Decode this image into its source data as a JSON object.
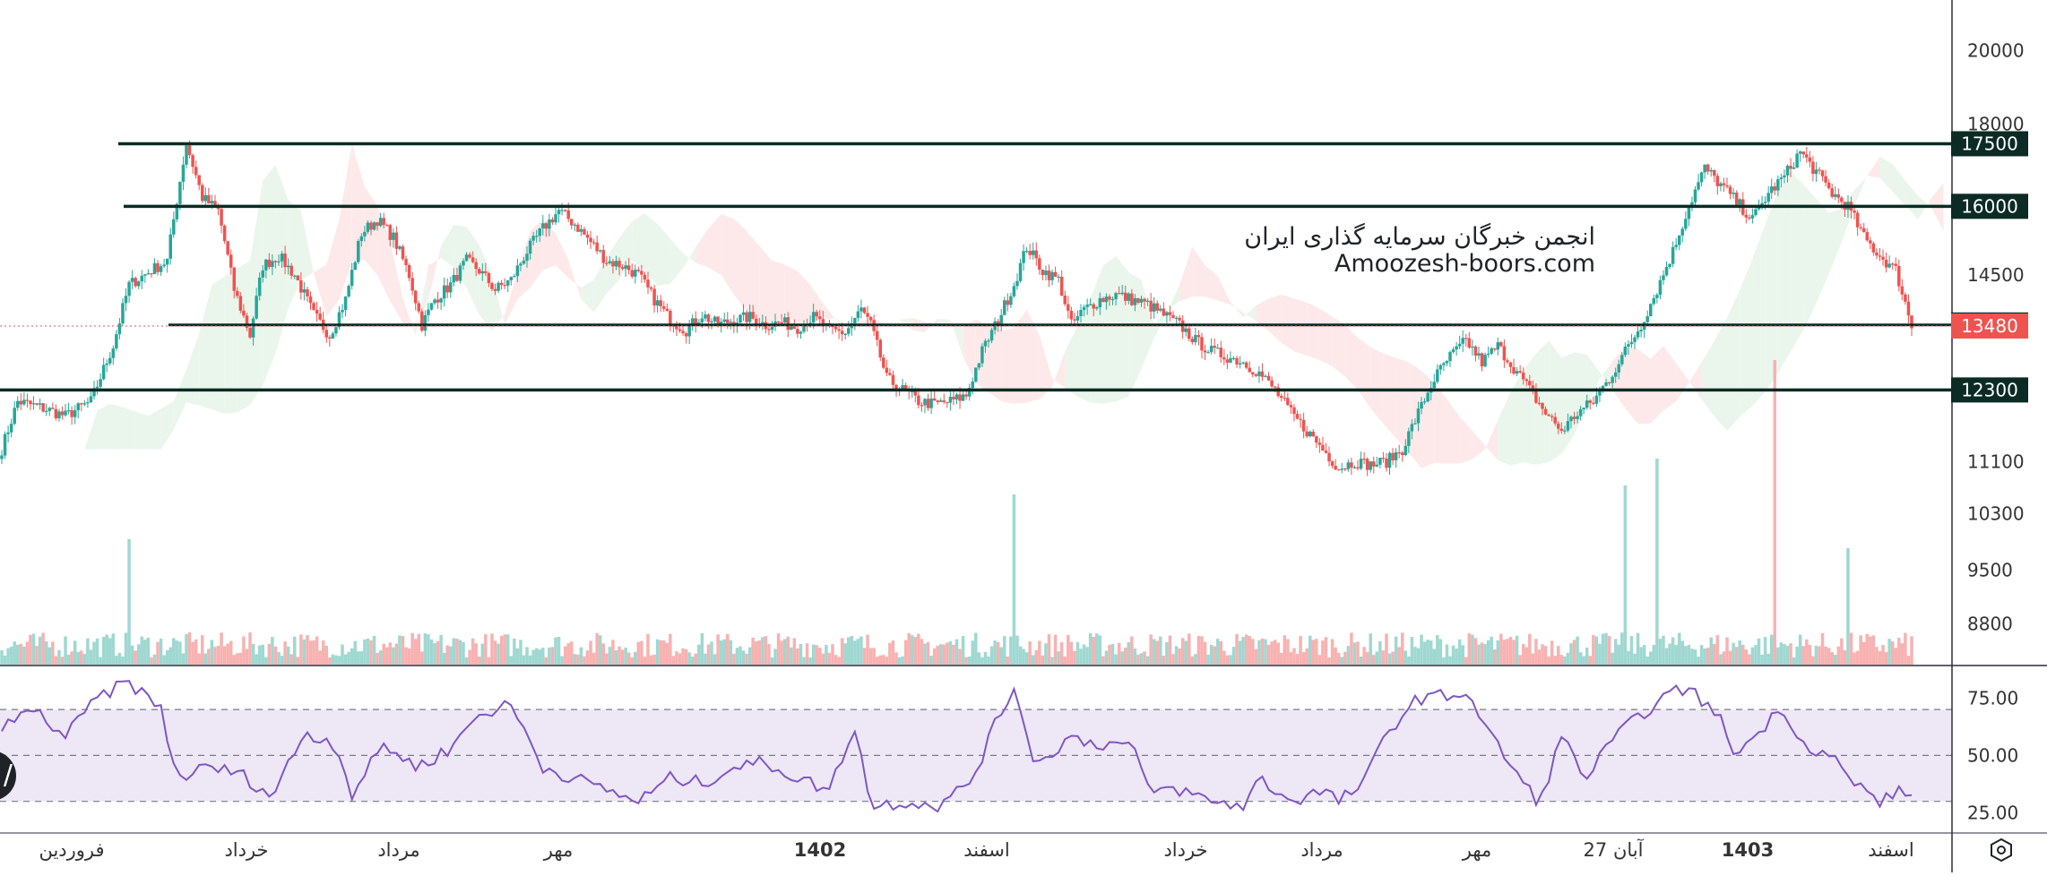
{
  "chart_data": {
    "type": "candlestick",
    "symbol": "",
    "price_axis": {
      "ticks": [
        20000,
        18000,
        14500,
        11100,
        10300,
        9500,
        8800
      ],
      "scale": "log",
      "range": [
        8300,
        21500
      ]
    },
    "horizontal_levels": [
      {
        "value": 17500,
        "label": "17500"
      },
      {
        "value": 16000,
        "label": "16000"
      },
      {
        "value": 13500,
        "label": "13500"
      },
      {
        "value": 12300,
        "label": "12300"
      }
    ],
    "last_price": {
      "value": 13480,
      "label": "13480"
    },
    "time_axis_labels": [
      "فروردین",
      "خرداد",
      "مرداد",
      "مهر",
      "1402",
      "اسفند",
      "خرداد",
      "مرداد",
      "مهر",
      "27 آبان",
      "1403",
      "اسفند"
    ],
    "time_axis_bold": [
      "1402",
      "1403"
    ],
    "close_path": [
      [
        0,
        11300
      ],
      [
        5,
        12100
      ],
      [
        12,
        12000
      ],
      [
        20,
        11850
      ],
      [
        28,
        12100
      ],
      [
        35,
        13100
      ],
      [
        40,
        14300
      ],
      [
        47,
        14600
      ],
      [
        52,
        14800
      ],
      [
        58,
        17500
      ],
      [
        63,
        16200
      ],
      [
        68,
        15900
      ],
      [
        73,
        14200
      ],
      [
        78,
        13300
      ],
      [
        82,
        14700
      ],
      [
        87,
        14900
      ],
      [
        92,
        14500
      ],
      [
        98,
        13700
      ],
      [
        103,
        13300
      ],
      [
        108,
        14000
      ],
      [
        113,
        15400
      ],
      [
        118,
        15700
      ],
      [
        123,
        15300
      ],
      [
        128,
        14500
      ],
      [
        132,
        13500
      ],
      [
        136,
        14000
      ],
      [
        141,
        14300
      ],
      [
        146,
        14800
      ],
      [
        150,
        14600
      ],
      [
        155,
        14200
      ],
      [
        160,
        14400
      ],
      [
        165,
        15000
      ],
      [
        170,
        15500
      ],
      [
        175,
        15900
      ],
      [
        180,
        15600
      ],
      [
        185,
        15200
      ],
      [
        190,
        14800
      ],
      [
        195,
        14700
      ],
      [
        200,
        14500
      ],
      [
        205,
        14000
      ],
      [
        210,
        13600
      ],
      [
        215,
        13400
      ],
      [
        220,
        13700
      ],
      [
        225,
        13500
      ],
      [
        230,
        13600
      ],
      [
        235,
        13650
      ],
      [
        240,
        13500
      ],
      [
        245,
        13550
      ],
      [
        250,
        13450
      ],
      [
        255,
        13650
      ],
      [
        260,
        13400
      ],
      [
        265,
        13350
      ],
      [
        270,
        13800
      ],
      [
        273,
        13500
      ],
      [
        278,
        12500
      ],
      [
        283,
        12300
      ],
      [
        288,
        12100
      ],
      [
        293,
        12050
      ],
      [
        298,
        12100
      ],
      [
        303,
        12200
      ],
      [
        308,
        13000
      ],
      [
        313,
        13600
      ],
      [
        318,
        14300
      ],
      [
        322,
        15100
      ],
      [
        327,
        14600
      ],
      [
        332,
        14400
      ],
      [
        336,
        13500
      ],
      [
        340,
        13800
      ],
      [
        345,
        14000
      ],
      [
        350,
        14100
      ],
      [
        355,
        14000
      ],
      [
        360,
        13900
      ],
      [
        365,
        13700
      ],
      [
        370,
        13500
      ],
      [
        375,
        13200
      ],
      [
        380,
        13000
      ],
      [
        385,
        12900
      ],
      [
        390,
        12800
      ],
      [
        395,
        12600
      ],
      [
        400,
        12300
      ],
      [
        405,
        11900
      ],
      [
        410,
        11600
      ],
      [
        415,
        11300
      ],
      [
        420,
        11000
      ],
      [
        425,
        11100
      ],
      [
        430,
        11050
      ],
      [
        435,
        11100
      ],
      [
        440,
        11300
      ],
      [
        445,
        11900
      ],
      [
        450,
        12500
      ],
      [
        455,
        12900
      ],
      [
        460,
        13200
      ],
      [
        465,
        12800
      ],
      [
        470,
        13100
      ],
      [
        475,
        12700
      ],
      [
        480,
        12300
      ],
      [
        485,
        11900
      ],
      [
        490,
        11600
      ],
      [
        495,
        11900
      ],
      [
        500,
        12100
      ],
      [
        505,
        12500
      ],
      [
        510,
        13000
      ],
      [
        515,
        13500
      ],
      [
        520,
        14200
      ],
      [
        525,
        15000
      ],
      [
        530,
        16000
      ],
      [
        535,
        16900
      ],
      [
        540,
        16500
      ],
      [
        545,
        16100
      ],
      [
        550,
        15700
      ],
      [
        555,
        16300
      ],
      [
        560,
        16700
      ],
      [
        565,
        17300
      ],
      [
        570,
        16800
      ],
      [
        575,
        16300
      ],
      [
        580,
        16000
      ],
      [
        585,
        15300
      ],
      [
        590,
        14900
      ],
      [
        595,
        14600
      ],
      [
        600,
        13480
      ]
    ],
    "volume_spikes": [
      {
        "bar": 40,
        "value": 140
      },
      {
        "bar": 318,
        "value": 190
      },
      {
        "bar": 510,
        "value": 200
      },
      {
        "bar": 520,
        "value": 230
      },
      {
        "bar": 557,
        "value": 340
      },
      {
        "bar": 580,
        "value": 130
      }
    ],
    "rsi": {
      "ticks": [
        75.0,
        50.0,
        25.0
      ],
      "tick_labels": [
        "75.00",
        "50.00",
        "25.00"
      ],
      "band": [
        30,
        70
      ],
      "path": [
        [
          0,
          62
        ],
        [
          10,
          70
        ],
        [
          20,
          58
        ],
        [
          30,
          75
        ],
        [
          40,
          82
        ],
        [
          50,
          70
        ],
        [
          55,
          40
        ],
        [
          65,
          45
        ],
        [
          75,
          42
        ],
        [
          85,
          32
        ],
        [
          95,
          60
        ],
        [
          105,
          55
        ],
        [
          110,
          33
        ],
        [
          120,
          55
        ],
        [
          130,
          45
        ],
        [
          140,
          52
        ],
        [
          150,
          68
        ],
        [
          160,
          72
        ],
        [
          170,
          45
        ],
        [
          180,
          40
        ],
        [
          190,
          35
        ],
        [
          200,
          30
        ],
        [
          210,
          40
        ],
        [
          220,
          38
        ],
        [
          230,
          45
        ],
        [
          240,
          47
        ],
        [
          250,
          40
        ],
        [
          260,
          35
        ],
        [
          268,
          63
        ],
        [
          273,
          28
        ],
        [
          285,
          30
        ],
        [
          295,
          28
        ],
        [
          305,
          40
        ],
        [
          312,
          63
        ],
        [
          318,
          80
        ],
        [
          325,
          45
        ],
        [
          335,
          58
        ],
        [
          345,
          55
        ],
        [
          355,
          55
        ],
        [
          360,
          35
        ],
        [
          370,
          35
        ],
        [
          380,
          30
        ],
        [
          390,
          28
        ],
        [
          395,
          40
        ],
        [
          405,
          30
        ],
        [
          415,
          35
        ],
        [
          420,
          30
        ],
        [
          428,
          38
        ],
        [
          435,
          60
        ],
        [
          445,
          75
        ],
        [
          455,
          76
        ],
        [
          460,
          78
        ],
        [
          468,
          58
        ],
        [
          478,
          38
        ],
        [
          483,
          29
        ],
        [
          490,
          58
        ],
        [
          498,
          40
        ],
        [
          505,
          55
        ],
        [
          515,
          68
        ],
        [
          522,
          75
        ],
        [
          530,
          80
        ],
        [
          540,
          65
        ],
        [
          545,
          50
        ],
        [
          555,
          65
        ],
        [
          560,
          70
        ],
        [
          566,
          55
        ],
        [
          575,
          50
        ],
        [
          580,
          40
        ],
        [
          590,
          30
        ],
        [
          598,
          35
        ],
        [
          602,
          27
        ]
      ]
    }
  },
  "watermark": {
    "line1": "انجمن خبرگان سرمایه گذاری ایران",
    "line2": "Amoozesh-boors.com"
  },
  "colors": {
    "up": "#26a69a",
    "down": "#ef5350",
    "level_line": "#0b2b24",
    "level_badge": "#0b2b24",
    "last_price_badge": "#ef5350",
    "rsi_line": "#7e57c2",
    "rsi_band": "#ede7f6",
    "cloud_green": "#e8f5e9",
    "cloud_red": "#fde7e7"
  },
  "icons": {
    "settings": "settings-hexagon-icon",
    "left_badge": "chevron-badge-icon"
  },
  "left_badge_glyph": "/"
}
